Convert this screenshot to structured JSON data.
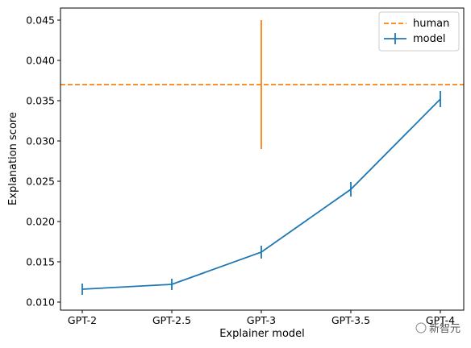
{
  "chart_data": {
    "type": "line",
    "xlabel": "Explainer model",
    "ylabel": "Explanation score",
    "categories": [
      "GPT-2",
      "GPT-2.5",
      "GPT-3",
      "GPT-3.5",
      "GPT-4"
    ],
    "ylim": [
      0.009,
      0.0465
    ],
    "yticks": [
      "0.010",
      "0.015",
      "0.020",
      "0.025",
      "0.030",
      "0.035",
      "0.040",
      "0.045"
    ],
    "grid": false,
    "legend_position": "top-right",
    "series": [
      {
        "name": "model",
        "style": "solid line with error bars",
        "color": "#1f77b4",
        "values": [
          0.0116,
          0.0122,
          0.0162,
          0.024,
          0.0352
        ],
        "errors": [
          0.0007,
          0.0007,
          0.0008,
          0.0009,
          0.001
        ]
      },
      {
        "name": "human",
        "style": "dashed horizontal line",
        "color": "#ff7f0e",
        "value": 0.037,
        "error_bar": {
          "category": "GPT-3",
          "low": 0.029,
          "high": 0.045
        }
      }
    ],
    "watermark": "新智元"
  }
}
